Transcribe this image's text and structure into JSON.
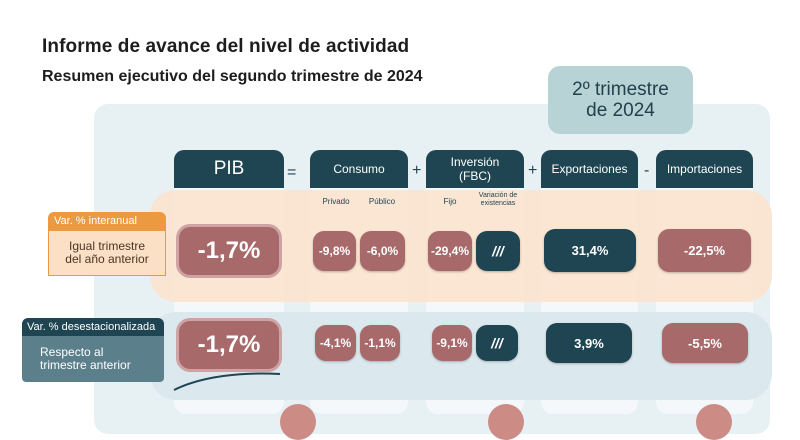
{
  "header": {
    "title": "Informe de avance del nivel de actividad",
    "subtitle": "Resumen ejecutivo del segundo trimestre de 2024",
    "period_line1": "2º trimestre",
    "period_line2": "de 2024"
  },
  "columns": {
    "pib": "PIB",
    "eq": "=",
    "consumo": "Consumo",
    "consumo_privado": "Privado",
    "consumo_publico": "Público",
    "plus1": "+",
    "inversion_line1": "Inversión",
    "inversion_line2": "(FBC)",
    "inversion_fijo": "Fijo",
    "inversion_var_line1": "Variación de",
    "inversion_var_line2": "existencias",
    "plus2": "+",
    "exportaciones": "Exportaciones",
    "minus": "-",
    "importaciones": "Importaciones"
  },
  "rows": {
    "interanual": {
      "tag": "Var. % interanual",
      "label_line1": "Igual trimestre",
      "label_line2": "del año anterior",
      "pib": "-1,7%",
      "consumo_privado": "-9,8%",
      "consumo_publico": "-6,0%",
      "inversion_fijo": "-29,4%",
      "inversion_var": "///",
      "exportaciones": "31,4%",
      "importaciones": "-22,5%"
    },
    "desestacionalizada": {
      "tag": "Var. % desestacionalizada",
      "label_line1": "Respecto al",
      "label_line2": "trimestre anterior",
      "pib": "-1,7%",
      "consumo_privado": "-4,1%",
      "consumo_publico": "-1,1%",
      "inversion_fijo": "-9,1%",
      "inversion_var": "///",
      "exportaciones": "3,9%",
      "importaciones": "-5,5%"
    }
  },
  "colors": {
    "dark_teal": "#1f4552",
    "negative_red": "#a8696b",
    "accent_orange": "#ec9a42",
    "light_teal": "#b8d3d6"
  }
}
